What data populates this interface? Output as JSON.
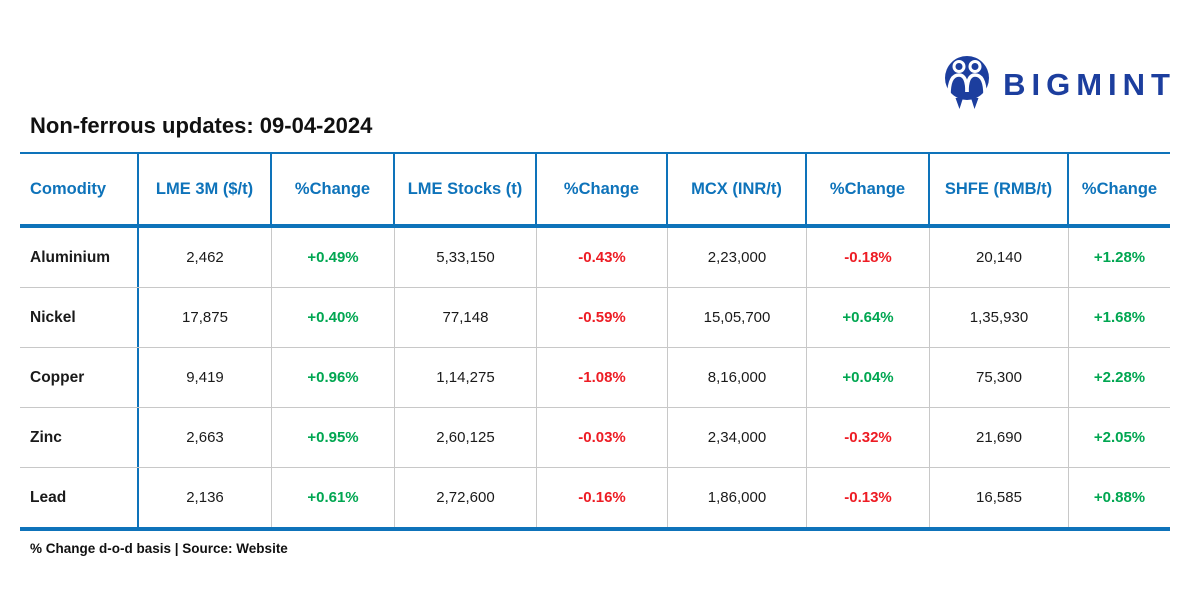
{
  "brand": {
    "name": "BIGMINT",
    "logo_color": "#1c3e9e"
  },
  "colors": {
    "accent_blue": "#0e73ba",
    "positive_green": "#00a651",
    "negative_red": "#ed1c24",
    "grid_gray": "#c8c8c8"
  },
  "chart_data": {
    "type": "table",
    "title": "Non-ferrous updates: 09-04-2024",
    "columns": [
      "Comodity",
      "LME 3M ($/t)",
      "%Change",
      "LME Stocks (t)",
      "%Change",
      "MCX (INR/t)",
      "%Change",
      "SHFE (RMB/t)",
      "%Change"
    ],
    "rows": [
      {
        "commodity": "Aluminium",
        "lme_3m": "2,462",
        "lme_3m_change": "+0.49%",
        "lme_stocks": "5,33,150",
        "lme_stocks_change": "-0.43%",
        "mcx": "2,23,000",
        "mcx_change": "-0.18%",
        "shfe": "20,140",
        "shfe_change": "+1.28%"
      },
      {
        "commodity": "Nickel",
        "lme_3m": "17,875",
        "lme_3m_change": "+0.40%",
        "lme_stocks": "77,148",
        "lme_stocks_change": "-0.59%",
        "mcx": "15,05,700",
        "mcx_change": "+0.64%",
        "shfe": "1,35,930",
        "shfe_change": "+1.68%"
      },
      {
        "commodity": "Copper",
        "lme_3m": "9,419",
        "lme_3m_change": "+0.96%",
        "lme_stocks": "1,14,275",
        "lme_stocks_change": "-1.08%",
        "mcx": "8,16,000",
        "mcx_change": "+0.04%",
        "shfe": "75,300",
        "shfe_change": "+2.28%"
      },
      {
        "commodity": "Zinc",
        "lme_3m": "2,663",
        "lme_3m_change": "+0.95%",
        "lme_stocks": "2,60,125",
        "lme_stocks_change": "-0.03%",
        "mcx": "2,34,000",
        "mcx_change": "-0.32%",
        "shfe": "21,690",
        "shfe_change": "+2.05%"
      },
      {
        "commodity": "Lead",
        "lme_3m": "2,136",
        "lme_3m_change": "+0.61%",
        "lme_stocks": "2,72,600",
        "lme_stocks_change": "-0.16%",
        "mcx": "1,86,000",
        "mcx_change": "-0.13%",
        "shfe": "16,585",
        "shfe_change": "+0.88%"
      }
    ],
    "note": "% Change d-o-d basis | Source: Website",
    "legend_position": "none",
    "grid": true
  }
}
